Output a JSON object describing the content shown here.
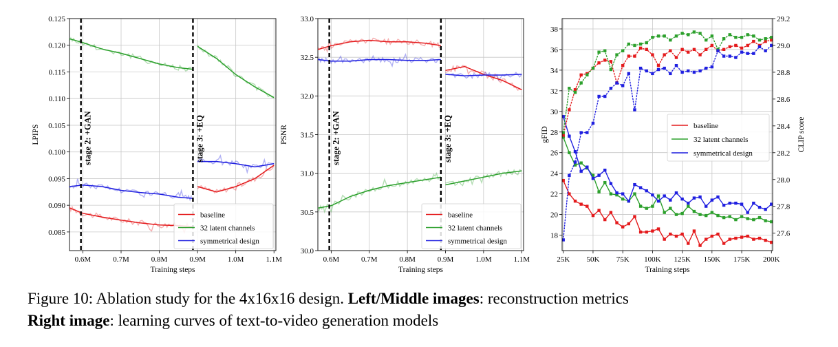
{
  "chart_data": [
    {
      "type": "line",
      "xlabel": "Training steps",
      "ylabel": "LPIPS",
      "xlim": [
        0.565,
        1.105
      ],
      "ylim": [
        0.0815,
        0.125
      ],
      "x_ticks": [
        0.6,
        0.7,
        0.8,
        0.9,
        1.0,
        1.1
      ],
      "x_tick_labels": [
        "0.6M",
        "0.7M",
        "0.8M",
        "0.9M",
        "1.0M",
        "1.1M"
      ],
      "y_ticks": [
        0.085,
        0.09,
        0.095,
        0.1,
        0.105,
        0.11,
        0.115,
        0.12,
        0.125
      ],
      "y_tick_labels": [
        "0.085",
        "0.090",
        "0.095",
        "0.100",
        "0.105",
        "0.110",
        "0.115",
        "0.120",
        "0.125"
      ],
      "grid": true,
      "legend_position": "lower-right",
      "annotations": [
        {
          "x": 0.595,
          "text": "stage 2: +GAN"
        },
        {
          "x": 0.888,
          "text": "stage 3: +EQ"
        }
      ],
      "series": [
        {
          "name": "baseline",
          "color": "#e41a1c",
          "x": [
            0.565,
            0.6,
            0.65,
            0.7,
            0.75,
            0.8,
            0.85,
            0.888,
            0.888,
            0.9,
            0.95,
            1.0,
            1.05,
            1.1
          ],
          "y": [
            0.0895,
            0.0885,
            0.0878,
            0.0872,
            0.0867,
            0.0863,
            0.0862,
            0.086,
            null,
            0.0935,
            0.0925,
            0.0935,
            0.095,
            0.0975
          ]
        },
        {
          "name": "32 latent channels",
          "color": "#2ca02c",
          "x": [
            0.565,
            0.6,
            0.65,
            0.7,
            0.75,
            0.8,
            0.85,
            0.888,
            0.888,
            0.9,
            0.95,
            1.0,
            1.05,
            1.1
          ],
          "y": [
            0.1212,
            0.1205,
            0.1193,
            0.1185,
            0.1175,
            0.1165,
            0.1158,
            0.1155,
            null,
            0.1198,
            0.1175,
            0.1145,
            0.1122,
            0.1102
          ]
        },
        {
          "name": "symmetrical design",
          "color": "#1f1fe0",
          "x": [
            0.565,
            0.6,
            0.65,
            0.7,
            0.75,
            0.8,
            0.85,
            0.888,
            0.888,
            0.9,
            0.95,
            1.0,
            1.05,
            1.1
          ],
          "y": [
            0.0935,
            0.0938,
            0.0935,
            0.0928,
            0.0924,
            0.0921,
            0.0915,
            0.0913,
            null,
            0.0982,
            0.0982,
            0.0978,
            0.0972,
            0.0978
          ]
        }
      ]
    },
    {
      "type": "line",
      "xlabel": "Training steps",
      "ylabel": "PSNR",
      "xlim": [
        0.565,
        1.105
      ],
      "ylim": [
        30.0,
        33.0
      ],
      "x_ticks": [
        0.6,
        0.7,
        0.8,
        0.9,
        1.0,
        1.1
      ],
      "x_tick_labels": [
        "0.6M",
        "0.7M",
        "0.8M",
        "0.9M",
        "1.0M",
        "1.1M"
      ],
      "y_ticks": [
        30.0,
        30.5,
        31.0,
        31.5,
        32.0,
        32.5,
        33.0
      ],
      "y_tick_labels": [
        "30.0",
        "30.5",
        "31.0",
        "31.5",
        "32.0",
        "32.5",
        "33.0"
      ],
      "grid": true,
      "legend_position": "lower-right",
      "annotations": [
        {
          "x": 0.595,
          "text": "stage 2: +GAN"
        },
        {
          "x": 0.888,
          "text": "stage 3: +EQ"
        }
      ],
      "series": [
        {
          "name": "baseline",
          "color": "#e41a1c",
          "x": [
            0.565,
            0.6,
            0.65,
            0.7,
            0.75,
            0.8,
            0.85,
            0.888,
            0.888,
            0.9,
            0.95,
            1.0,
            1.05,
            1.1
          ],
          "y": [
            32.6,
            32.65,
            32.7,
            32.72,
            32.7,
            32.7,
            32.68,
            32.65,
            null,
            32.33,
            32.38,
            32.28,
            32.2,
            32.08
          ]
        },
        {
          "name": "32 latent channels",
          "color": "#2ca02c",
          "x": [
            0.565,
            0.6,
            0.65,
            0.7,
            0.75,
            0.8,
            0.85,
            0.888,
            0.888,
            0.9,
            0.95,
            1.0,
            1.05,
            1.1
          ],
          "y": [
            30.55,
            30.58,
            30.7,
            30.78,
            30.84,
            30.88,
            30.92,
            30.95,
            null,
            30.85,
            30.9,
            30.95,
            31.0,
            31.03
          ]
        },
        {
          "name": "symmetrical design",
          "color": "#1f1fe0",
          "x": [
            0.565,
            0.6,
            0.65,
            0.7,
            0.75,
            0.8,
            0.85,
            0.888,
            0.888,
            0.9,
            0.95,
            1.0,
            1.05,
            1.1
          ],
          "y": [
            32.47,
            32.45,
            32.45,
            32.47,
            32.47,
            32.46,
            32.46,
            32.47,
            null,
            32.28,
            32.26,
            32.27,
            32.27,
            32.28
          ]
        }
      ]
    },
    {
      "type": "line",
      "xlabel": "Training steps",
      "ylabel": "gFID",
      "y2label": "CLIP score",
      "xlim": [
        24000,
        201000
      ],
      "ylim": [
        16.5,
        39.0
      ],
      "y2lim": [
        27.47,
        29.2
      ],
      "x_ticks": [
        25000,
        50000,
        75000,
        100000,
        125000,
        150000,
        175000,
        200000
      ],
      "x_tick_labels": [
        "25K",
        "50K",
        "75K",
        "100K",
        "125K",
        "150K",
        "175K",
        "200K"
      ],
      "y_ticks": [
        18,
        20,
        22,
        24,
        26,
        28,
        30,
        32,
        34,
        36,
        38
      ],
      "y_tick_labels": [
        "18",
        "20",
        "22",
        "24",
        "26",
        "28",
        "30",
        "32",
        "34",
        "36",
        "38"
      ],
      "y2_ticks": [
        27.6,
        27.8,
        28.0,
        28.2,
        28.4,
        28.6,
        28.8,
        29.0,
        29.2
      ],
      "y2_tick_labels": [
        "27.6",
        "27.8",
        "28.0",
        "28.2",
        "28.4",
        "28.6",
        "28.8",
        "29.0",
        "29.2"
      ],
      "grid": true,
      "legend_position": "center-right",
      "x": [
        25000,
        30000,
        35000,
        40000,
        45000,
        50000,
        55000,
        60000,
        65000,
        70000,
        75000,
        80000,
        85000,
        90000,
        95000,
        100000,
        105000,
        110000,
        115000,
        120000,
        125000,
        130000,
        135000,
        140000,
        145000,
        150000,
        155000,
        160000,
        165000,
        170000,
        175000,
        180000,
        185000,
        190000,
        195000,
        200000
      ],
      "series": [
        {
          "name": "baseline",
          "color": "#e41a1c",
          "axis": "gFID",
          "y": [
            23.3,
            22.0,
            21.3,
            21.0,
            20.8,
            19.9,
            20.4,
            19.5,
            20.2,
            19.2,
            18.8,
            19.1,
            19.8,
            18.3,
            18.3,
            18.4,
            18.6,
            17.6,
            18.1,
            17.9,
            18.1,
            17.2,
            18.4,
            17.0,
            17.6,
            17.9,
            18.1,
            17.2,
            17.6,
            17.7,
            17.8,
            17.9,
            17.6,
            17.7,
            17.5,
            17.3
          ]
        },
        {
          "name": "32 latent channels",
          "color": "#2ca02c",
          "axis": "gFID",
          "y": [
            27.5,
            26.0,
            24.8,
            25.0,
            24.5,
            23.8,
            22.2,
            23.1,
            22.0,
            21.9,
            21.5,
            21.3,
            22.0,
            20.8,
            20.6,
            20.8,
            21.8,
            20.2,
            20.6,
            20.0,
            20.1,
            20.8,
            20.3,
            20.0,
            19.9,
            20.2,
            19.9,
            19.7,
            19.8,
            19.5,
            19.8,
            19.6,
            19.5,
            19.7,
            19.4,
            19.3
          ]
        },
        {
          "name": "symmetrical design",
          "color": "#1f1fe0",
          "axis": "gFID",
          "y": [
            29.5,
            27.6,
            26.1,
            24.2,
            24.6,
            23.5,
            23.8,
            24.3,
            23.0,
            22.1,
            22.0,
            21.3,
            22.9,
            22.6,
            22.3,
            21.9,
            21.3,
            21.8,
            21.4,
            22.1,
            21.5,
            21.1,
            21.6,
            21.7,
            20.8,
            21.4,
            21.7,
            20.9,
            21.1,
            21.1,
            21.0,
            20.2,
            21.1,
            20.7,
            20.5,
            21.0
          ]
        },
        {
          "name": "baseline",
          "color": "#e41a1c",
          "axis": "CLIP score",
          "dotted": true,
          "y": [
            28.33,
            28.52,
            28.67,
            28.78,
            28.79,
            28.83,
            28.87,
            28.89,
            28.88,
            28.72,
            28.85,
            28.92,
            28.92,
            28.98,
            28.97,
            28.93,
            28.85,
            28.93,
            28.96,
            28.91,
            28.97,
            28.95,
            28.97,
            28.93,
            28.97,
            29.0,
            28.96,
            28.97,
            28.99,
            29.0,
            28.98,
            29.0,
            29.03,
            29.0,
            29.03,
            29.04
          ]
        },
        {
          "name": "32 latent channels",
          "color": "#2ca02c",
          "axis": "CLIP score",
          "dotted": true,
          "y": [
            28.35,
            28.68,
            28.65,
            28.72,
            28.78,
            28.83,
            28.95,
            28.96,
            28.82,
            28.93,
            28.96,
            29.01,
            29.0,
            29.01,
            29.02,
            29.06,
            29.07,
            29.07,
            29.04,
            29.07,
            29.09,
            29.08,
            29.1,
            29.09,
            29.04,
            29.07,
            28.97,
            29.05,
            29.08,
            29.06,
            29.06,
            29.08,
            29.07,
            29.04,
            29.05,
            29.06
          ]
        },
        {
          "name": "symmetrical design",
          "color": "#1f1fe0",
          "axis": "CLIP score",
          "dotted": true,
          "y": [
            27.55,
            28.03,
            28.13,
            28.35,
            28.35,
            28.42,
            28.62,
            28.62,
            28.68,
            28.72,
            28.7,
            28.79,
            28.52,
            28.83,
            28.81,
            28.79,
            28.82,
            28.83,
            28.79,
            28.85,
            28.8,
            28.81,
            28.8,
            28.81,
            28.83,
            28.84,
            28.96,
            28.92,
            28.92,
            28.91,
            28.95,
            28.94,
            28.94,
            28.99,
            28.96,
            29.0
          ]
        }
      ]
    }
  ],
  "caption": {
    "line1_prefix": "Figure 10: Ablation study for the 4x16x16 design. ",
    "line1_bold": "Left/Middle images",
    "line1_suffix": ": reconstruction metrics",
    "line2_bold": "Right image",
    "line2_suffix": ": learning curves of text-to-video generation models"
  }
}
